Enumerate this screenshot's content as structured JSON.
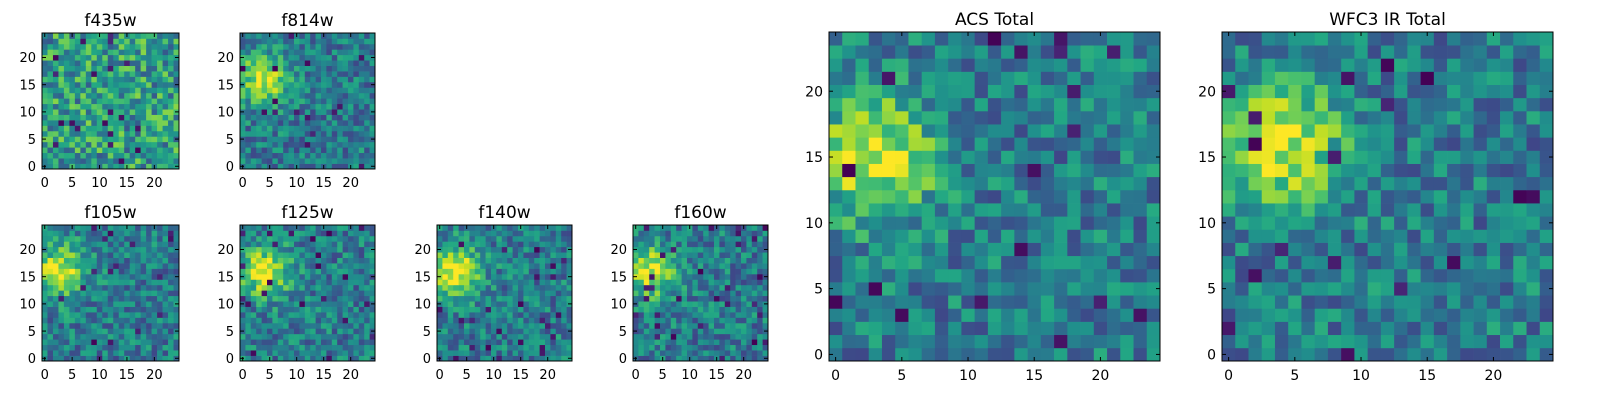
{
  "chart_data": [
    {
      "type": "heatmap",
      "title": "f435w",
      "xlabel": "",
      "ylabel": "",
      "grid": false,
      "xlim": [
        -0.5,
        24.5
      ],
      "ylim": [
        -0.5,
        24.5
      ],
      "xticks": [
        0,
        5,
        10,
        15,
        20
      ],
      "yticks": [
        0,
        5,
        10,
        15,
        20
      ],
      "pixel_grid": [
        25,
        25
      ],
      "colormap": "viridis",
      "source_center": null,
      "seed": 11
    },
    {
      "type": "heatmap",
      "title": "f814w",
      "xlabel": "",
      "ylabel": "",
      "grid": false,
      "xlim": [
        -0.5,
        24.5
      ],
      "ylim": [
        -0.5,
        24.5
      ],
      "xticks": [
        0,
        5,
        10,
        15,
        20
      ],
      "yticks": [
        0,
        5,
        10,
        15,
        20
      ],
      "pixel_grid": [
        25,
        25
      ],
      "colormap": "viridis",
      "source_center": [
        4,
        16
      ],
      "seed": 23
    },
    {
      "type": "heatmap",
      "title": "f105w",
      "xlabel": "",
      "ylabel": "",
      "grid": false,
      "xlim": [
        -0.5,
        24.5
      ],
      "ylim": [
        -0.5,
        24.5
      ],
      "xticks": [
        0,
        5,
        10,
        15,
        20
      ],
      "yticks": [
        0,
        5,
        10,
        15,
        20
      ],
      "pixel_grid": [
        25,
        25
      ],
      "colormap": "viridis",
      "source_center": [
        3,
        16
      ],
      "seed": 37
    },
    {
      "type": "heatmap",
      "title": "f125w",
      "xlabel": "",
      "ylabel": "",
      "grid": false,
      "xlim": [
        -0.5,
        24.5
      ],
      "ylim": [
        -0.5,
        24.5
      ],
      "xticks": [
        0,
        5,
        10,
        15,
        20
      ],
      "yticks": [
        0,
        5,
        10,
        15,
        20
      ],
      "pixel_grid": [
        25,
        25
      ],
      "colormap": "viridis",
      "source_center": [
        4,
        16
      ],
      "seed": 41
    },
    {
      "type": "heatmap",
      "title": "f140w",
      "xlabel": "",
      "ylabel": "",
      "grid": false,
      "xlim": [
        -0.5,
        24.5
      ],
      "ylim": [
        -0.5,
        24.5
      ],
      "xticks": [
        0,
        5,
        10,
        15,
        20
      ],
      "yticks": [
        0,
        5,
        10,
        15,
        20
      ],
      "pixel_grid": [
        25,
        25
      ],
      "colormap": "viridis",
      "source_center": [
        3,
        16
      ],
      "seed": 53
    },
    {
      "type": "heatmap",
      "title": "f160w",
      "xlabel": "",
      "ylabel": "",
      "grid": false,
      "xlim": [
        -0.5,
        24.5
      ],
      "ylim": [
        -0.5,
        24.5
      ],
      "xticks": [
        0,
        5,
        10,
        15,
        20
      ],
      "yticks": [
        0,
        5,
        10,
        15,
        20
      ],
      "pixel_grid": [
        25,
        25
      ],
      "colormap": "viridis",
      "source_center": [
        3,
        16
      ],
      "seed": 67
    },
    {
      "type": "heatmap",
      "title": "ACS Total",
      "xlabel": "",
      "ylabel": "",
      "grid": false,
      "xlim": [
        -0.5,
        24.5
      ],
      "ylim": [
        -0.5,
        24.5
      ],
      "xticks": [
        0,
        5,
        10,
        15,
        20
      ],
      "yticks": [
        0,
        5,
        10,
        15,
        20
      ],
      "pixel_grid": [
        25,
        25
      ],
      "colormap": "viridis",
      "source_center": [
        3,
        15
      ],
      "seed": 79
    },
    {
      "type": "heatmap",
      "title": "WFC3 IR Total",
      "xlabel": "",
      "ylabel": "",
      "grid": false,
      "xlim": [
        -0.5,
        24.5
      ],
      "ylim": [
        -0.5,
        24.5
      ],
      "xticks": [
        0,
        5,
        10,
        15,
        20
      ],
      "yticks": [
        0,
        5,
        10,
        15,
        20
      ],
      "pixel_grid": [
        25,
        25
      ],
      "colormap": "viridis",
      "source_center": [
        4,
        16
      ],
      "seed": 97
    }
  ]
}
